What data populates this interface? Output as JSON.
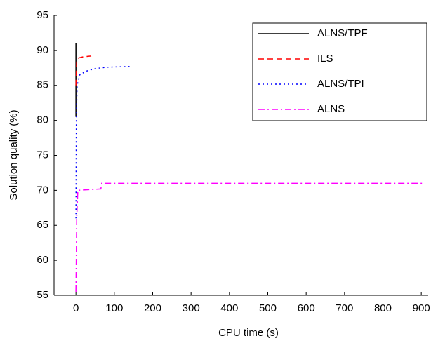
{
  "chart_data": {
    "type": "line",
    "xlabel": "CPU time (s)",
    "ylabel": "Solution quality (%)",
    "xlim": [
      -57,
      918
    ],
    "ylim": [
      55,
      95
    ],
    "xticks": [
      0,
      100,
      200,
      300,
      400,
      500,
      600,
      700,
      800,
      900
    ],
    "yticks": [
      55,
      60,
      65,
      70,
      75,
      80,
      85,
      90,
      95
    ],
    "legend": "upper right",
    "series": [
      {
        "name": "ALNS/TPF",
        "color": "#000000",
        "dash": "solid",
        "x": [
          0,
          0,
          1
        ],
        "values": [
          80.5,
          91,
          91
        ]
      },
      {
        "name": "ILS",
        "color": "#ff0000",
        "dash": "dashed",
        "x": [
          0,
          2,
          5,
          20,
          40
        ],
        "values": [
          85,
          88.5,
          88.9,
          89.1,
          89.2
        ]
      },
      {
        "name": "ALNS/TPI",
        "color": "#0000ff",
        "dash": "dotted",
        "x": [
          0,
          1,
          3,
          10,
          25,
          50,
          80,
          140
        ],
        "values": [
          66,
          80,
          85,
          86.5,
          87,
          87.4,
          87.6,
          87.7
        ]
      },
      {
        "name": "ALNS",
        "color": "#ff00ff",
        "dash": "dashdot",
        "x": [
          0,
          2,
          5,
          65,
          67,
          910
        ],
        "values": [
          55.5,
          66,
          70,
          70.2,
          71,
          71
        ]
      }
    ]
  }
}
